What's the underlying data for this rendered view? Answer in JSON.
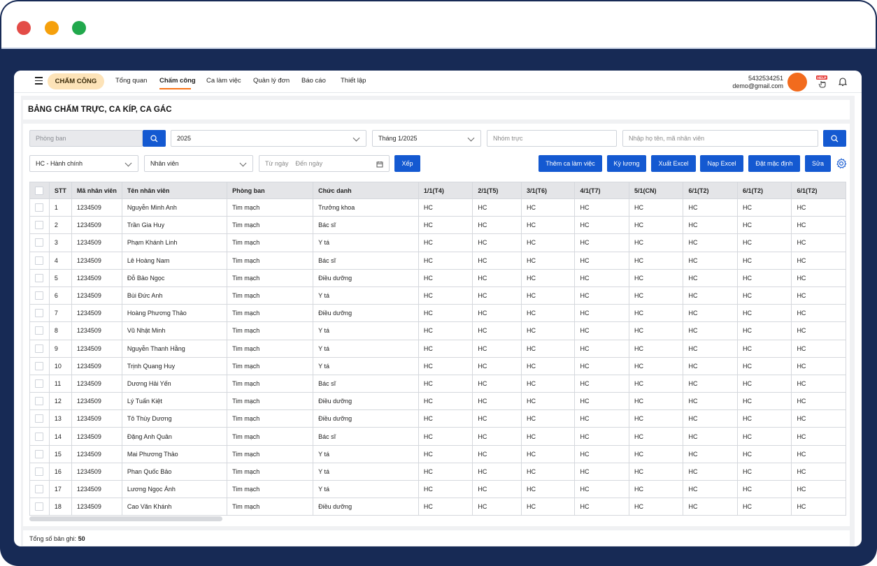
{
  "window": {
    "dots": [
      "#e34c47",
      "#f5a00c",
      "#21a84c"
    ]
  },
  "nav": {
    "brand": "CHẤM CÔNG",
    "links": [
      "Tổng quan",
      "Chấm công",
      "Ca làm việc",
      "Quản lý đơn",
      "Báo cáo",
      "Thiết lập"
    ],
    "active": "Chấm công",
    "user_phone": "5432534251",
    "user_email": "demo@gmail.com",
    "help_label": "HELP"
  },
  "page": {
    "title": "BẢNG CHẤM TRỰC, CA KÍP, CA GÁC"
  },
  "filters": {
    "department_placeholder": "Phòng ban",
    "year": "2025",
    "month": "Tháng 1/2025",
    "duty_group_placeholder": "Nhóm trực",
    "search_placeholder": "Nhập họ tên, mã nhân viên",
    "department_select": "HC - Hành chính",
    "employee_select": "Nhân viên",
    "from_placeholder": "Từ ngày",
    "to_placeholder": "Đến ngày",
    "arrange_button": "Xếp"
  },
  "actions": {
    "add_shift": "Thêm ca làm việc",
    "pay_period": "Kỳ lương",
    "export_excel": "Xuất Excel",
    "import_excel": "Nạp Excel",
    "set_default": "Đặt mặc định",
    "edit": "Sửa"
  },
  "table": {
    "headers": [
      "STT",
      "Mã nhân viên",
      "Tên nhân viên",
      "Phòng ban",
      "Chức danh",
      "1/1(T4)",
      "2/1(T5)",
      "3/1(T6)",
      "4/1(T7)",
      "5/1(CN)",
      "6/1(T2)",
      "6/1(T2)",
      "6/1(T2)"
    ],
    "rows": [
      [
        "1",
        "1234509",
        "Nguyễn Minh Anh",
        "Tim mạch",
        "Trưởng khoa",
        "HC",
        "HC",
        "HC",
        "HC",
        "HC",
        "HC",
        "HC",
        "HC"
      ],
      [
        "2",
        "1234509",
        "Trần Gia Huy",
        "Tim mạch",
        "Bác sĩ",
        "HC",
        "HC",
        "HC",
        "HC",
        "HC",
        "HC",
        "HC",
        "HC"
      ],
      [
        "3",
        "1234509",
        "Phạm Khánh Linh",
        "Tim mạch",
        "Y tá",
        "HC",
        "HC",
        "HC",
        "HC",
        "HC",
        "HC",
        "HC",
        "HC"
      ],
      [
        "4",
        "1234509",
        "Lê Hoàng Nam",
        "Tim mạch",
        "Bác sĩ",
        "HC",
        "HC",
        "HC",
        "HC",
        "HC",
        "HC",
        "HC",
        "HC"
      ],
      [
        "5",
        "1234509",
        "Đỗ Bảo Ngọc",
        "Tim mạch",
        "Điều dưỡng",
        "HC",
        "HC",
        "HC",
        "HC",
        "HC",
        "HC",
        "HC",
        "HC"
      ],
      [
        "6",
        "1234509",
        "Bùi Đức Anh",
        "Tim mạch",
        "Y tá",
        "HC",
        "HC",
        "HC",
        "HC",
        "HC",
        "HC",
        "HC",
        "HC"
      ],
      [
        "7",
        "1234509",
        "Hoàng Phương Thảo",
        "Tim mạch",
        "Điều dưỡng",
        "HC",
        "HC",
        "HC",
        "HC",
        "HC",
        "HC",
        "HC",
        "HC"
      ],
      [
        "8",
        "1234509",
        "Vũ Nhật Minh",
        "Tim mạch",
        "Y tá",
        "HC",
        "HC",
        "HC",
        "HC",
        "HC",
        "HC",
        "HC",
        "HC"
      ],
      [
        "9",
        "1234509",
        "Nguyễn Thanh Hằng",
        "Tim mạch",
        "Y tá",
        "HC",
        "HC",
        "HC",
        "HC",
        "HC",
        "HC",
        "HC",
        "HC"
      ],
      [
        "10",
        "1234509",
        "Trịnh Quang Huy",
        "Tim mạch",
        "Y tá",
        "HC",
        "HC",
        "HC",
        "HC",
        "HC",
        "HC",
        "HC",
        "HC"
      ],
      [
        "11",
        "1234509",
        "Dương Hải Yến",
        "Tim mạch",
        "Bác sĩ",
        "HC",
        "HC",
        "HC",
        "HC",
        "HC",
        "HC",
        "HC",
        "HC"
      ],
      [
        "12",
        "1234509",
        "Lý Tuấn Kiệt",
        "Tim mạch",
        "Điều dưỡng",
        "HC",
        "HC",
        "HC",
        "HC",
        "HC",
        "HC",
        "HC",
        "HC"
      ],
      [
        "13",
        "1234509",
        "Tô Thùy Dương",
        "Tim mạch",
        "Điều dưỡng",
        "HC",
        "HC",
        "HC",
        "HC",
        "HC",
        "HC",
        "HC",
        "HC"
      ],
      [
        "14",
        "1234509",
        "Đặng Anh Quân",
        "Tim mạch",
        "Bác sĩ",
        "HC",
        "HC",
        "HC",
        "HC",
        "HC",
        "HC",
        "HC",
        "HC"
      ],
      [
        "15",
        "1234509",
        "Mai Phương Thảo",
        "Tim mạch",
        "Y tá",
        "HC",
        "HC",
        "HC",
        "HC",
        "HC",
        "HC",
        "HC",
        "HC"
      ],
      [
        "16",
        "1234509",
        "Phan Quốc Bảo",
        "Tim mạch",
        "Y tá",
        "HC",
        "HC",
        "HC",
        "HC",
        "HC",
        "HC",
        "HC",
        "HC"
      ],
      [
        "17",
        "1234509",
        "Lương Ngọc Ánh",
        "Tim mạch",
        "Y tá",
        "HC",
        "HC",
        "HC",
        "HC",
        "HC",
        "HC",
        "HC",
        "HC"
      ],
      [
        "18",
        "1234509",
        "Cao Văn Khánh",
        "Tim mạch",
        "Điều dưỡng",
        "HC",
        "HC",
        "HC",
        "HC",
        "HC",
        "HC",
        "HC",
        "HC"
      ]
    ]
  },
  "footer": {
    "total_label": "Tổng số bản ghi:",
    "total_value": "50"
  },
  "colors": {
    "primary": "#1459d1",
    "accent": "#f97316",
    "frame": "#172a55",
    "brand_pill": "#fde3b8"
  },
  "icons": [
    "menu-icon",
    "help-icon",
    "bell-icon",
    "search-icon",
    "chevron-down-icon",
    "calendar-icon",
    "gear-icon"
  ]
}
